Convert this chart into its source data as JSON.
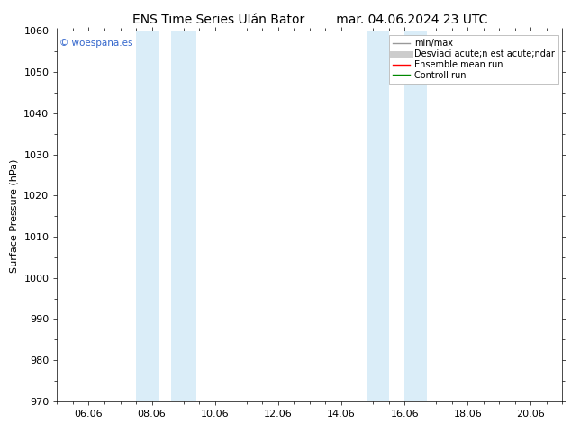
{
  "title_left": "ENS Time Series Ulán Bator",
  "title_right": "mar. 04.06.2024 23 UTC",
  "ylabel": "Surface Pressure (hPa)",
  "ylim": [
    970,
    1060
  ],
  "yticks": [
    970,
    980,
    990,
    1000,
    1010,
    1020,
    1030,
    1040,
    1050,
    1060
  ],
  "xtick_labels": [
    "06.06",
    "08.06",
    "10.06",
    "12.06",
    "14.06",
    "16.06",
    "18.06",
    "20.06"
  ],
  "xtick_positions": [
    1,
    3,
    5,
    7,
    9,
    11,
    13,
    15
  ],
  "xlim": [
    0,
    16
  ],
  "shaded_bands": [
    {
      "xstart": 2.5,
      "xend": 3.2
    },
    {
      "xstart": 3.6,
      "xend": 4.4
    },
    {
      "xstart": 9.8,
      "xend": 10.5
    },
    {
      "xstart": 11.0,
      "xend": 11.7
    }
  ],
  "shade_color": "#daedf8",
  "background_color": "#ffffff",
  "plot_bg_color": "#ffffff",
  "watermark": "© woespana.es",
  "watermark_color": "#3366cc",
  "legend_labels": [
    "min/max",
    "Desviaci acute;n est acute;ndar",
    "Ensemble mean run",
    "Controll run"
  ],
  "legend_colors": [
    "#999999",
    "#cccccc",
    "#ff0000",
    "#008800"
  ],
  "legend_lws": [
    1.0,
    5.0,
    1.0,
    1.0
  ],
  "title_fontsize": 10,
  "axis_label_fontsize": 8,
  "tick_fontsize": 8,
  "legend_fontsize": 7,
  "figsize": [
    6.34,
    4.9
  ],
  "dpi": 100
}
